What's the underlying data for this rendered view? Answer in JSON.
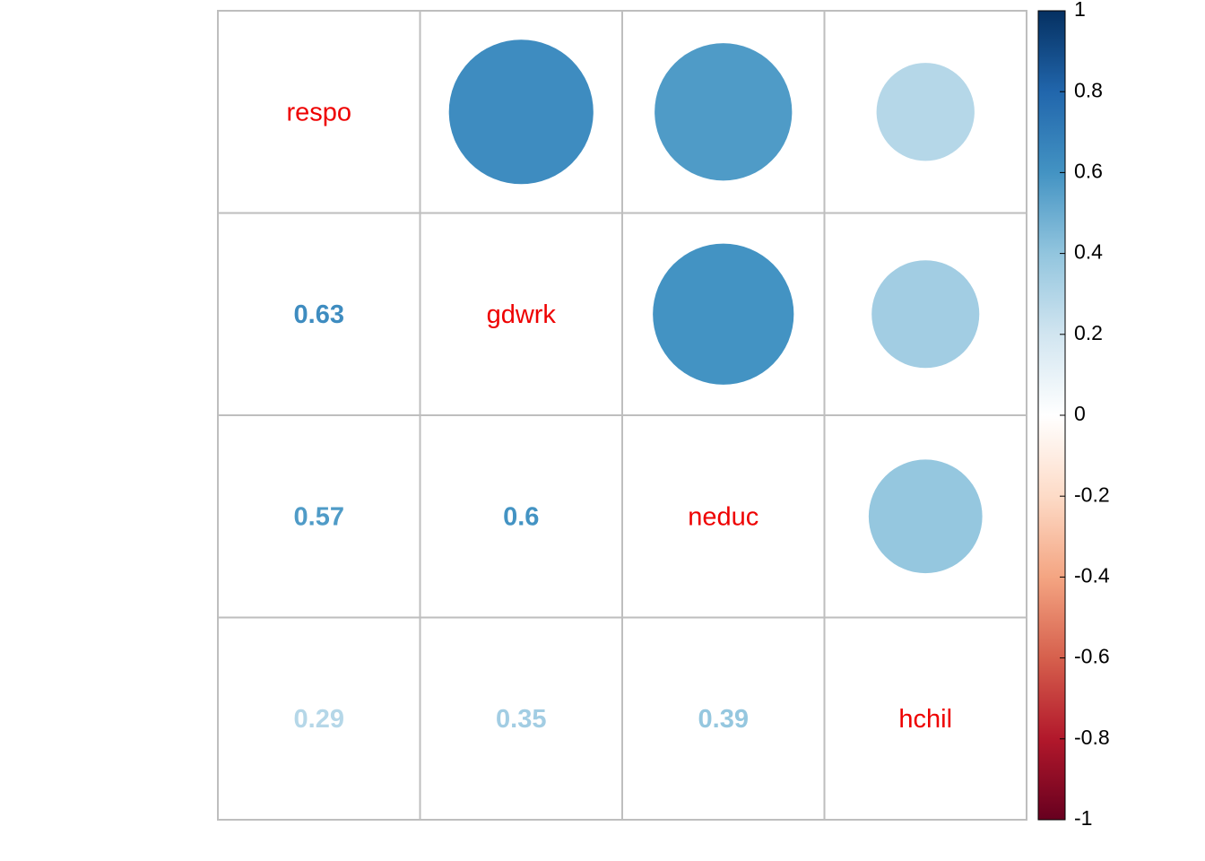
{
  "chart_data": {
    "type": "heatmap",
    "title": "",
    "variables": [
      "respo",
      "gdwrk",
      "neduc",
      "hchil"
    ],
    "matrix": [
      [
        1,
        0.63,
        0.57,
        0.29
      ],
      [
        0.63,
        1,
        0.6,
        0.35
      ],
      [
        0.57,
        0.6,
        1,
        0.39
      ],
      [
        0.29,
        0.35,
        0.39,
        1
      ]
    ],
    "lower_triangle": "numbers",
    "upper_triangle": "circles",
    "lower_labels": [
      {
        "text": "0.63",
        "row": 1,
        "col": 0,
        "value": 0.63
      },
      {
        "text": "0.57",
        "row": 2,
        "col": 0,
        "value": 0.57
      },
      {
        "text": "0.6",
        "row": 2,
        "col": 1,
        "value": 0.6
      },
      {
        "text": "0.29",
        "row": 3,
        "col": 0,
        "value": 0.29
      },
      {
        "text": "0.35",
        "row": 3,
        "col": 1,
        "value": 0.35
      },
      {
        "text": "0.39",
        "row": 3,
        "col": 2,
        "value": 0.39
      }
    ],
    "colorbar": {
      "range": [
        -1,
        1
      ],
      "ticks": [
        "1",
        "0.8",
        "0.6",
        "0.4",
        "0.2",
        "0",
        "-0.2",
        "-0.4",
        "-0.6",
        "-0.8",
        "-1"
      ],
      "tick_values": [
        1,
        0.8,
        0.6,
        0.4,
        0.2,
        0,
        -0.2,
        -0.4,
        -0.6,
        -0.8,
        -1
      ],
      "placement": "right"
    },
    "diagonal_label_color": "#ee0000",
    "grid_color": "#bebebe",
    "palette": [
      "#67001f",
      "#b2182b",
      "#d6604d",
      "#f4a582",
      "#fddbc7",
      "#ffffff",
      "#d1e5f0",
      "#92c5de",
      "#4393c3",
      "#2166ac",
      "#053061"
    ]
  }
}
